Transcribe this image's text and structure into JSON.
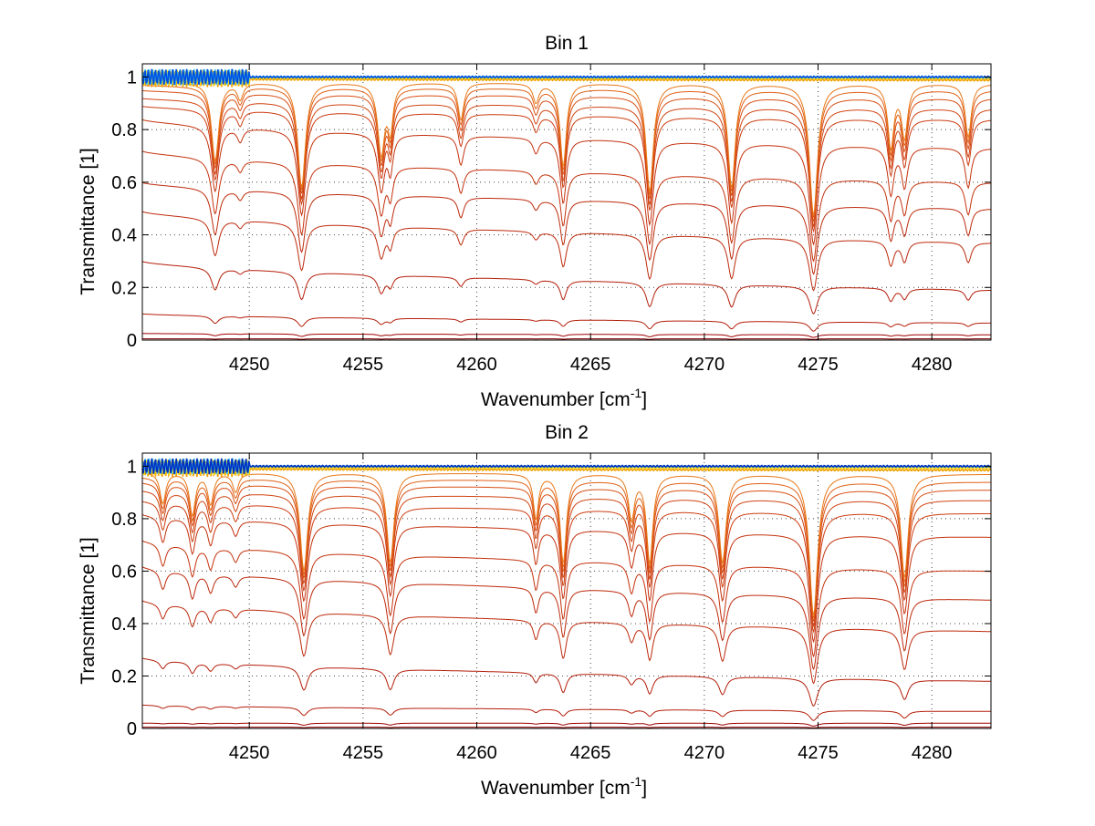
{
  "chart_data": [
    {
      "type": "line",
      "title": "Bin 1",
      "xlabel": "Wavenumber [cm",
      "xlabel_sup": "-1",
      "xlabel_end": "]",
      "ylabel": "Transmittance [1]",
      "xlim": [
        4245.3,
        4282.6
      ],
      "ylim": [
        0,
        1.05
      ],
      "grid": true,
      "xticks": [
        4250,
        4255,
        4260,
        4265,
        4270,
        4275,
        4280
      ],
      "yticks": [
        0,
        0.2,
        0.4,
        0.6,
        0.8,
        1
      ],
      "xtick_labels": [
        "4250",
        "4255",
        "4260",
        "4265",
        "4270",
        "4275",
        "4280"
      ],
      "ytick_labels": [
        "0",
        "0.2",
        "0.4",
        "0.6",
        "0.8",
        "1"
      ],
      "legend": "none",
      "lines": [
        {
          "x": 4248.5,
          "d": 0.28,
          "w": 0.18
        },
        {
          "x": 4249.6,
          "d": 0.05,
          "w": 0.15
        },
        {
          "x": 4252.3,
          "d": 0.4,
          "w": 0.18
        },
        {
          "x": 4255.8,
          "d": 0.25,
          "w": 0.17
        },
        {
          "x": 4256.2,
          "d": 0.15,
          "w": 0.13
        },
        {
          "x": 4259.3,
          "d": 0.12,
          "w": 0.15
        },
        {
          "x": 4262.6,
          "d": 0.06,
          "w": 0.15
        },
        {
          "x": 4263.8,
          "d": 0.3,
          "w": 0.15
        },
        {
          "x": 4267.6,
          "d": 0.42,
          "w": 0.17
        },
        {
          "x": 4271.2,
          "d": 0.4,
          "w": 0.17
        },
        {
          "x": 4274.8,
          "d": 0.55,
          "w": 0.18
        },
        {
          "x": 4278.2,
          "d": 0.22,
          "w": 0.15
        },
        {
          "x": 4278.8,
          "d": 0.18,
          "w": 0.15
        },
        {
          "x": 4281.6,
          "d": 0.18,
          "w": 0.15
        }
      ],
      "series": [
        {
          "name": "s1",
          "color": "#8b0000",
          "baseline": [
            0.005,
            0.005
          ]
        },
        {
          "name": "s2",
          "color": "#a00000",
          "baseline": [
            0.025,
            0.02
          ]
        },
        {
          "name": "s3",
          "color": "#b41e0a",
          "baseline": [
            0.1,
            0.065
          ]
        },
        {
          "name": "s4",
          "color": "#b41e0a",
          "baseline": [
            0.3,
            0.19
          ]
        },
        {
          "name": "s5",
          "color": "#bd2a0c",
          "baseline": [
            0.49,
            0.37
          ]
        },
        {
          "name": "s6",
          "color": "#bd2a0c",
          "baseline": [
            0.6,
            0.5
          ]
        },
        {
          "name": "s7",
          "color": "#c4320e",
          "baseline": [
            0.72,
            0.6
          ]
        },
        {
          "name": "s8",
          "color": "#c4320e",
          "baseline": [
            0.84,
            0.73
          ]
        },
        {
          "name": "s9",
          "color": "#cc3c10",
          "baseline": [
            0.89,
            0.84
          ]
        },
        {
          "name": "s10",
          "color": "#d04412",
          "baseline": [
            0.92,
            0.88
          ]
        },
        {
          "name": "s11",
          "color": "#d84e14",
          "baseline": [
            0.95,
            0.92
          ]
        },
        {
          "name": "s12",
          "color": "#e06016",
          "baseline": [
            0.97,
            0.95
          ]
        },
        {
          "name": "s13",
          "color": "#e87818",
          "baseline": [
            0.985,
            0.975
          ]
        },
        {
          "name": "s14",
          "color": "#f0a000",
          "baseline": [
            0.992,
            0.988
          ]
        },
        {
          "name": "s15",
          "color": "#ffd800",
          "baseline": [
            0.997,
            0.995
          ]
        },
        {
          "name": "s16",
          "color": "#3cc8f0",
          "baseline": [
            1.0,
            0.999
          ]
        },
        {
          "name": "s17",
          "color": "#0050e0",
          "baseline": [
            1.0,
            1.0
          ]
        }
      ]
    },
    {
      "type": "line",
      "title": "Bin 2",
      "xlabel": "Wavenumber [cm",
      "xlabel_sup": "-1",
      "xlabel_end": "]",
      "ylabel": "Transmittance [1]",
      "xlim": [
        4245.3,
        4282.6
      ],
      "ylim": [
        0,
        1.05
      ],
      "grid": true,
      "xticks": [
        4250,
        4255,
        4260,
        4265,
        4270,
        4275,
        4280
      ],
      "yticks": [
        0,
        0.2,
        0.4,
        0.6,
        0.8,
        1
      ],
      "xtick_labels": [
        "4250",
        "4255",
        "4260",
        "4265",
        "4270",
        "4275",
        "4280"
      ],
      "ytick_labels": [
        "0",
        "0.2",
        "0.4",
        "0.6",
        "0.8",
        "1"
      ],
      "legend": "none",
      "lines": [
        {
          "x": 4246.2,
          "d": 0.1,
          "w": 0.15
        },
        {
          "x": 4247.5,
          "d": 0.14,
          "w": 0.15
        },
        {
          "x": 4248.3,
          "d": 0.1,
          "w": 0.15
        },
        {
          "x": 4249.4,
          "d": 0.06,
          "w": 0.15
        },
        {
          "x": 4252.4,
          "d": 0.37,
          "w": 0.18
        },
        {
          "x": 4256.2,
          "d": 0.33,
          "w": 0.17
        },
        {
          "x": 4262.6,
          "d": 0.15,
          "w": 0.13
        },
        {
          "x": 4263.8,
          "d": 0.33,
          "w": 0.15
        },
        {
          "x": 4266.8,
          "d": 0.15,
          "w": 0.15
        },
        {
          "x": 4267.6,
          "d": 0.33,
          "w": 0.15
        },
        {
          "x": 4270.8,
          "d": 0.33,
          "w": 0.17
        },
        {
          "x": 4274.8,
          "d": 0.62,
          "w": 0.18
        },
        {
          "x": 4278.8,
          "d": 0.4,
          "w": 0.17
        }
      ],
      "series": [
        {
          "name": "s1",
          "color": "#8b0000",
          "baseline": [
            0.005,
            0.005
          ]
        },
        {
          "name": "s2",
          "color": "#a00000",
          "baseline": [
            0.02,
            0.02
          ]
        },
        {
          "name": "s3",
          "color": "#b41e0a",
          "baseline": [
            0.09,
            0.065
          ]
        },
        {
          "name": "s4",
          "color": "#b41e0a",
          "baseline": [
            0.27,
            0.18
          ]
        },
        {
          "name": "s5",
          "color": "#bd2a0c",
          "baseline": [
            0.49,
            0.37
          ]
        },
        {
          "name": "s6",
          "color": "#bd2a0c",
          "baseline": [
            0.62,
            0.49
          ]
        },
        {
          "name": "s7",
          "color": "#c4320e",
          "baseline": [
            0.72,
            0.6
          ]
        },
        {
          "name": "s8",
          "color": "#c4320e",
          "baseline": [
            0.82,
            0.73
          ]
        },
        {
          "name": "s9",
          "color": "#cc3c10",
          "baseline": [
            0.87,
            0.82
          ]
        },
        {
          "name": "s10",
          "color": "#d04412",
          "baseline": [
            0.91,
            0.87
          ]
        },
        {
          "name": "s11",
          "color": "#d84e14",
          "baseline": [
            0.94,
            0.91
          ]
        },
        {
          "name": "s12",
          "color": "#e06016",
          "baseline": [
            0.96,
            0.94
          ]
        },
        {
          "name": "s13",
          "color": "#e87818",
          "baseline": [
            0.98,
            0.97
          ]
        },
        {
          "name": "s14",
          "color": "#f0a000",
          "baseline": [
            0.99,
            0.985
          ]
        },
        {
          "name": "s15",
          "color": "#ffd800",
          "baseline": [
            0.996,
            0.994
          ]
        },
        {
          "name": "s16",
          "color": "#3cc8f0",
          "baseline": [
            1.0,
            0.999
          ]
        },
        {
          "name": "s17",
          "color": "#0030c0",
          "baseline": [
            1.0,
            1.0
          ]
        }
      ]
    }
  ]
}
